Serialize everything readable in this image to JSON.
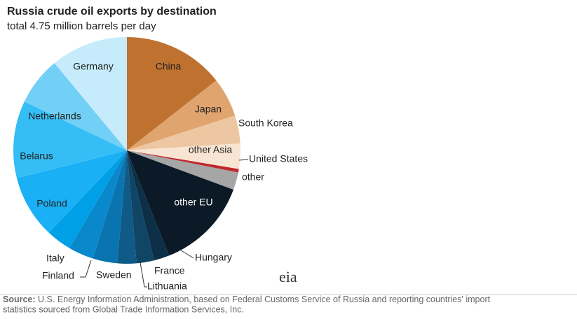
{
  "chart_data": {
    "type": "pie",
    "title": "Russia  crude oil exports by destination",
    "subtitle": "total 4.75 million barrels per day",
    "categories": [
      "China",
      "Japan",
      "South Korea",
      "other Asia",
      "United States",
      "other",
      "other EU",
      "Hungary",
      "France",
      "Lithuania",
      "Sweden",
      "Finland",
      "Italy",
      "Poland",
      "Belarus",
      "Netherlands",
      "Germany"
    ],
    "values": [
      14.4,
      5.6,
      4,
      3.6,
      0.5,
      2.5,
      13.3,
      2.2,
      2.5,
      2.7,
      3.5,
      3.6,
      3.6,
      9,
      11,
      6.9,
      11
    ],
    "colors": [
      "#bf7230",
      "#e0a46f",
      "#edc7a2",
      "#f8e4d2",
      "#c0272d",
      "#a6a6a6",
      "#0b1a26",
      "#0d3048",
      "#104566",
      "#0f5a86",
      "#0a74b0",
      "#0a88cc",
      "#00a0e6",
      "#1ab0f5",
      "#35bef5",
      "#72cff6",
      "#c6ecfc"
    ],
    "source_label": "Source:",
    "source_text": "U.S. Energy Information Administration, based on Federal Customs Service of Russia and reporting countries' import",
    "source_text_2": "statistics sourced from Global Trade Information Services, Inc.",
    "logo": "eia"
  }
}
